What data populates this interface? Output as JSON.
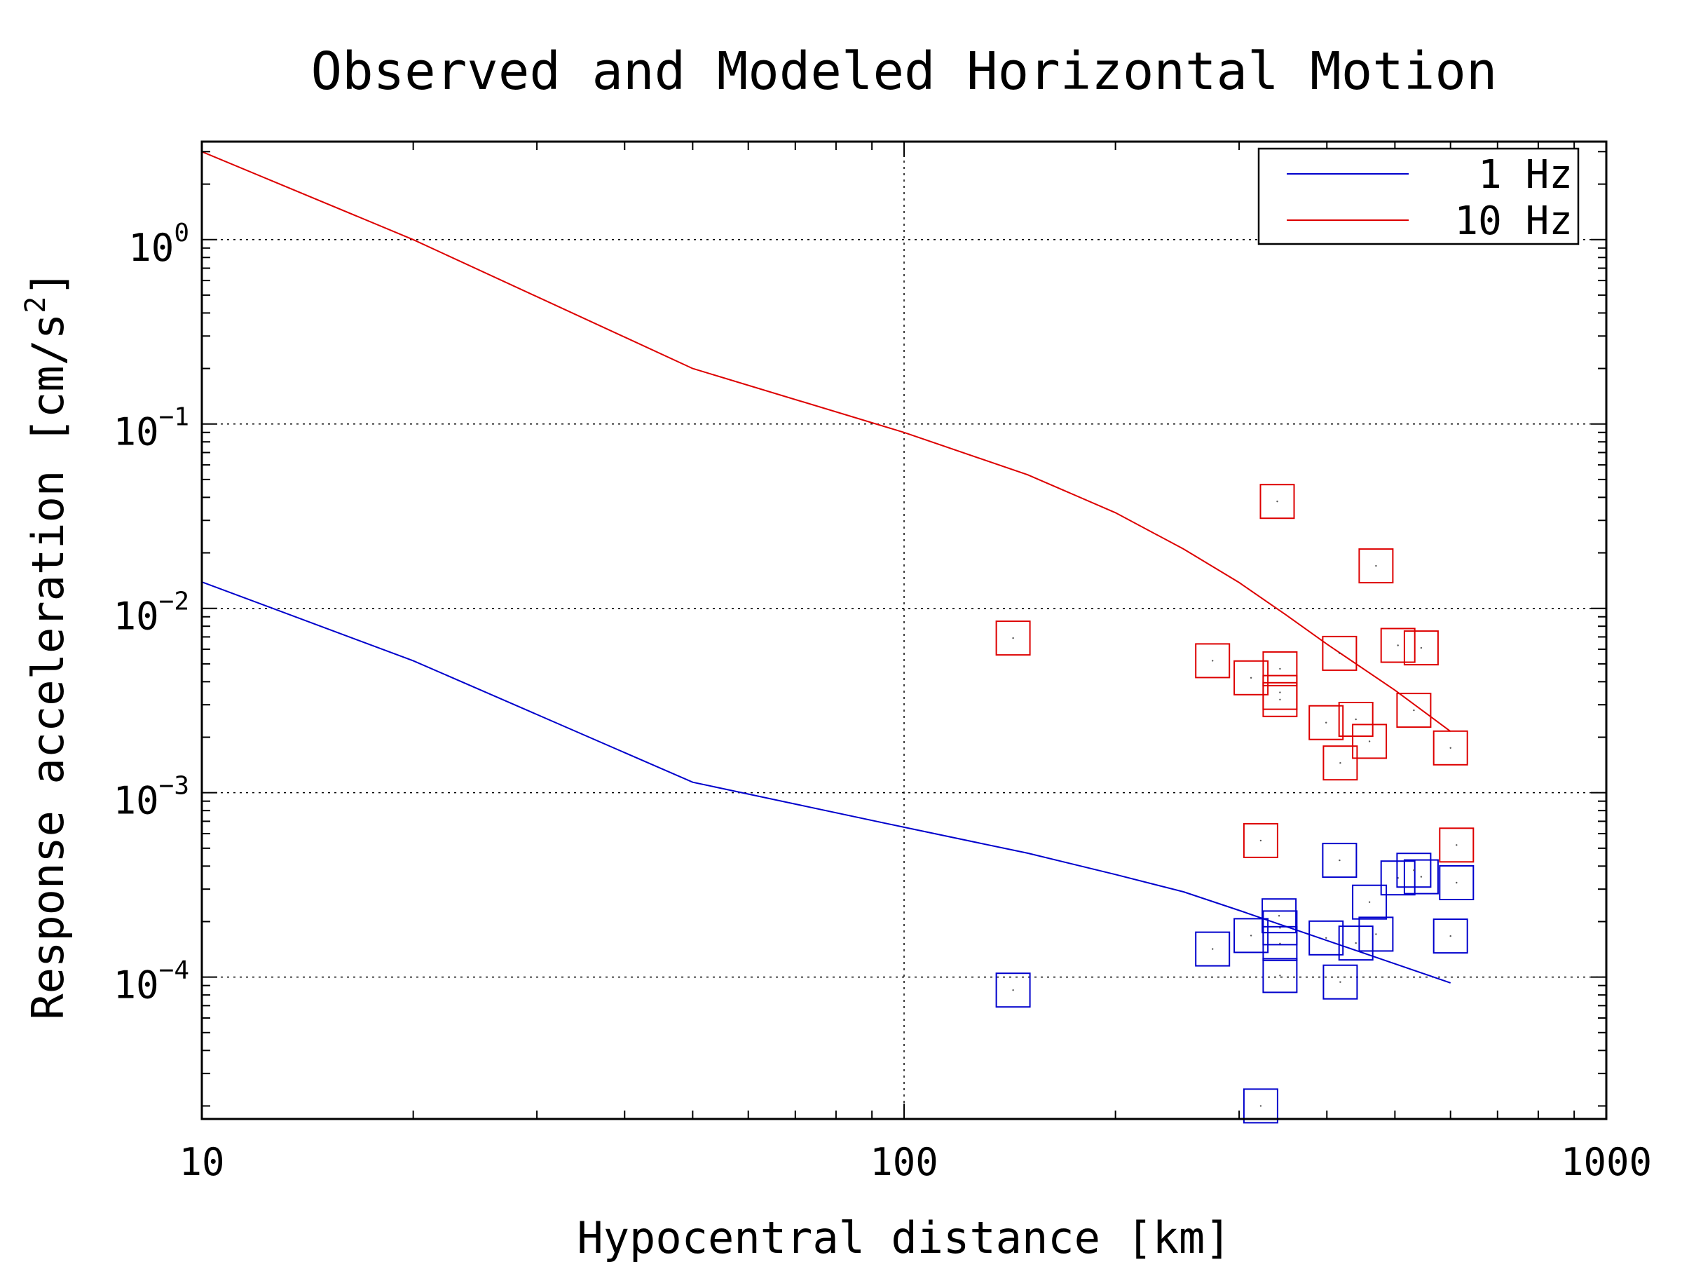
{
  "chart_data": {
    "type": "scatter",
    "title": "Observed and Modeled Horizontal Motion",
    "xlabel": "Hypocentral distance [km]",
    "ylabel": "Response acceleration [cm/s",
    "ylabel_superscript": "2",
    "ylabel_close": "]",
    "xscale": "log",
    "yscale": "log",
    "xlim": [
      10,
      1000
    ],
    "ylim": [
      1.7e-05,
      3.4
    ],
    "grid": true,
    "legend_position": "top-right",
    "x_ticks": [
      {
        "value": 10,
        "label": "10"
      },
      {
        "value": 100,
        "label": "100"
      },
      {
        "value": 1000,
        "label": "1000"
      }
    ],
    "y_ticks": [
      {
        "value": 1,
        "base": "10",
        "exponent": "0"
      },
      {
        "value": 0.1,
        "base": "10",
        "exponent": "−1"
      },
      {
        "value": 0.01,
        "base": "10",
        "exponent": "−2"
      },
      {
        "value": 0.001,
        "base": "10",
        "exponent": "−3"
      },
      {
        "value": 0.0001,
        "base": "10",
        "exponent": "−4"
      }
    ],
    "series": [
      {
        "name": "1 Hz",
        "color": "#0000cc",
        "model_line": [
          {
            "x": 10,
            "y": 0.0139
          },
          {
            "x": 20,
            "y": 0.0052
          },
          {
            "x": 50,
            "y": 0.00114
          },
          {
            "x": 100,
            "y": 0.00065
          },
          {
            "x": 150,
            "y": 0.00047
          },
          {
            "x": 200,
            "y": 0.00036
          },
          {
            "x": 250,
            "y": 0.00029
          },
          {
            "x": 300,
            "y": 0.00023
          },
          {
            "x": 400,
            "y": 0.000158
          },
          {
            "x": 500,
            "y": 0.000118
          },
          {
            "x": 600,
            "y": 9.3e-05
          }
        ],
        "observed": [
          {
            "x": 143,
            "y": 8.5e-05
          },
          {
            "x": 275,
            "y": 0.000142
          },
          {
            "x": 312,
            "y": 0.000168
          },
          {
            "x": 322,
            "y": 2e-05
          },
          {
            "x": 342,
            "y": 0.000215
          },
          {
            "x": 343,
            "y": 0.000185
          },
          {
            "x": 343,
            "y": 0.000152
          },
          {
            "x": 343,
            "y": 0.000102
          },
          {
            "x": 399,
            "y": 0.000163
          },
          {
            "x": 417,
            "y": 0.00043
          },
          {
            "x": 418,
            "y": 9.4e-05
          },
          {
            "x": 440,
            "y": 0.000153
          },
          {
            "x": 460,
            "y": 0.000255
          },
          {
            "x": 470,
            "y": 0.000171
          },
          {
            "x": 505,
            "y": 0.000345
          },
          {
            "x": 532,
            "y": 0.00038
          },
          {
            "x": 545,
            "y": 0.00035
          },
          {
            "x": 600,
            "y": 0.000167
          },
          {
            "x": 612,
            "y": 0.000325
          }
        ]
      },
      {
        "name": "10 Hz",
        "color": "#dd0000",
        "model_line": [
          {
            "x": 10,
            "y": 3.0
          },
          {
            "x": 20,
            "y": 1.0
          },
          {
            "x": 50,
            "y": 0.2
          },
          {
            "x": 100,
            "y": 0.09
          },
          {
            "x": 150,
            "y": 0.053
          },
          {
            "x": 200,
            "y": 0.033
          },
          {
            "x": 250,
            "y": 0.021
          },
          {
            "x": 300,
            "y": 0.0138
          },
          {
            "x": 350,
            "y": 0.0092
          },
          {
            "x": 400,
            "y": 0.0064
          },
          {
            "x": 500,
            "y": 0.0036
          },
          {
            "x": 600,
            "y": 0.00215
          }
        ],
        "observed": [
          {
            "x": 143,
            "y": 0.0069
          },
          {
            "x": 275,
            "y": 0.0052
          },
          {
            "x": 312,
            "y": 0.0042
          },
          {
            "x": 322,
            "y": 0.00055
          },
          {
            "x": 340,
            "y": 0.038
          },
          {
            "x": 343,
            "y": 0.0047
          },
          {
            "x": 343,
            "y": 0.0035
          },
          {
            "x": 343,
            "y": 0.0032
          },
          {
            "x": 399,
            "y": 0.0024
          },
          {
            "x": 417,
            "y": 0.0057
          },
          {
            "x": 418,
            "y": 0.00145
          },
          {
            "x": 440,
            "y": 0.0025
          },
          {
            "x": 460,
            "y": 0.0019
          },
          {
            "x": 470,
            "y": 0.017
          },
          {
            "x": 505,
            "y": 0.0063
          },
          {
            "x": 532,
            "y": 0.0028
          },
          {
            "x": 545,
            "y": 0.0061
          },
          {
            "x": 600,
            "y": 0.00175
          },
          {
            "x": 612,
            "y": 0.00052
          }
        ]
      }
    ]
  }
}
